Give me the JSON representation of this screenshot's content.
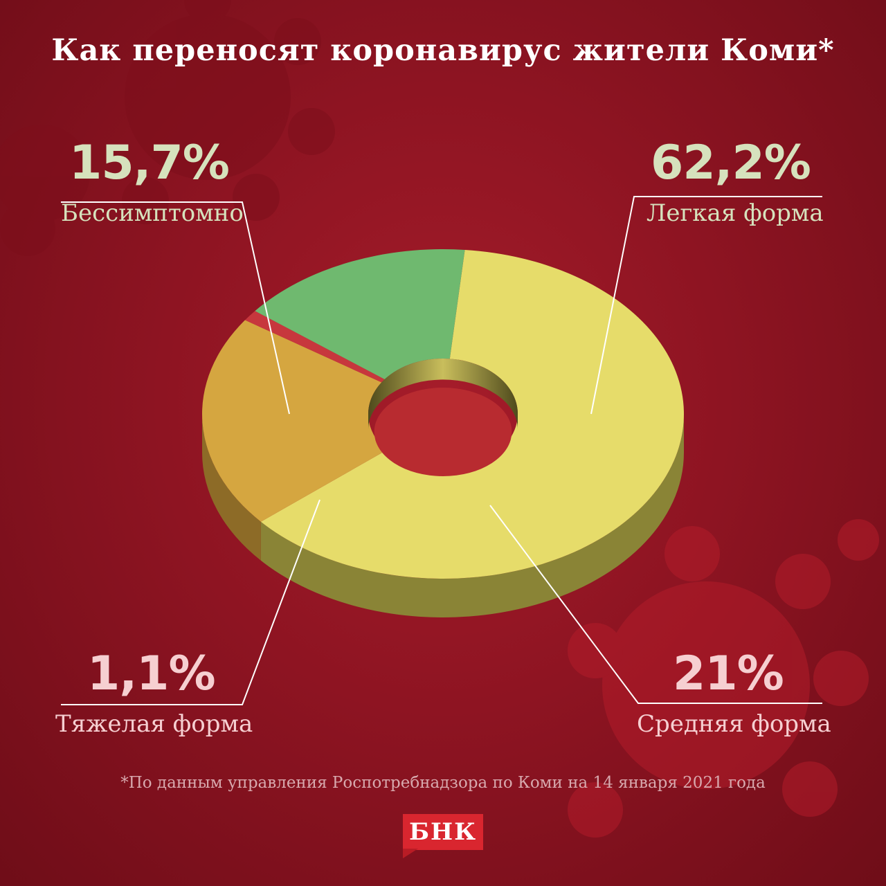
{
  "chart_data": {
    "type": "pie",
    "title": "Как переносят коронавирус жители Коми*",
    "categories": [
      "Легкая форма",
      "Средняя форма",
      "Тяжелая форма",
      "Бессимптомно"
    ],
    "values": [
      62.2,
      21,
      1.1,
      15.7
    ],
    "colors": [
      "#e6dc6a",
      "#d5a640",
      "#c7373d",
      "#6fb96f"
    ],
    "side_colors": [
      "#8a8436",
      "#8d6b27",
      "#6a1a1e",
      "#1f5e2e"
    ]
  },
  "labels": {
    "asymptomatic": {
      "value": "15,7%",
      "name": "Бессимптомно"
    },
    "mild": {
      "value": "62,2%",
      "name": "Легкая форма"
    },
    "severe": {
      "value": "1,1%",
      "name": "Тяжелая форма"
    },
    "moderate": {
      "value": "21%",
      "name": "Средняя форма"
    }
  },
  "footnote": "*По данным управления Роспотребнадзора по Коми на 14 января 2021 года",
  "logo": "БНК"
}
